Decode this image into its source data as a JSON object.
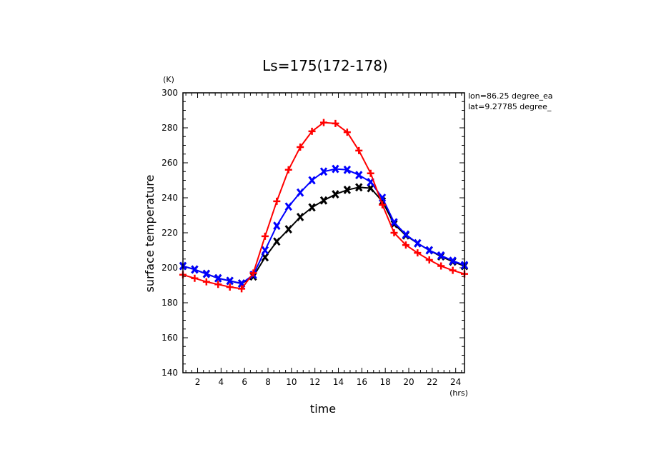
{
  "chart_data": {
    "type": "line",
    "title": "Ls=175(172-178)",
    "xlabel": "time",
    "ylabel": "surface temperature",
    "x_unit": "(hrs)",
    "y_unit": "(K)",
    "xlim": [
      0.75,
      24.75
    ],
    "ylim": [
      140,
      300
    ],
    "xticks": [
      2,
      4,
      6,
      8,
      10,
      12,
      14,
      16,
      18,
      20,
      22,
      24
    ],
    "yticks": [
      140,
      160,
      180,
      200,
      220,
      240,
      260,
      280,
      300
    ],
    "annotations": [
      "lon=86.25 degree_ea",
      "lat=9.27785 degree_"
    ],
    "x": [
      0.75,
      1.75,
      2.75,
      3.75,
      4.75,
      5.75,
      6.75,
      7.75,
      8.75,
      9.75,
      10.75,
      11.75,
      12.75,
      13.75,
      14.75,
      15.75,
      16.75,
      17.75,
      18.75,
      19.75,
      20.75,
      21.75,
      22.75,
      23.75,
      24.75
    ],
    "series": [
      {
        "color": "#ff0000",
        "marker": "plus",
        "values": [
          196,
          194,
          192,
          190.5,
          189,
          188,
          197,
          218,
          238,
          256,
          269,
          278,
          283,
          282.5,
          277.5,
          267,
          254,
          236,
          220,
          213,
          208.5,
          204.5,
          201,
          198.5,
          196.5
        ]
      },
      {
        "color": "#0000ff",
        "marker": "x",
        "values": [
          201,
          199,
          196.5,
          194,
          192.5,
          191,
          196,
          210,
          224,
          235,
          243,
          250,
          255,
          256.5,
          256,
          253,
          249,
          240,
          226,
          219,
          214,
          210,
          207,
          204,
          201.5
        ]
      },
      {
        "color": "#000000",
        "marker": "x",
        "values": [
          201,
          199,
          196.5,
          194,
          192.5,
          191,
          195,
          206,
          215,
          222,
          229,
          234.5,
          238.5,
          242,
          244.5,
          246,
          245.5,
          238,
          225,
          218.5,
          214,
          210,
          206.5,
          203.5,
          201
        ]
      }
    ]
  }
}
